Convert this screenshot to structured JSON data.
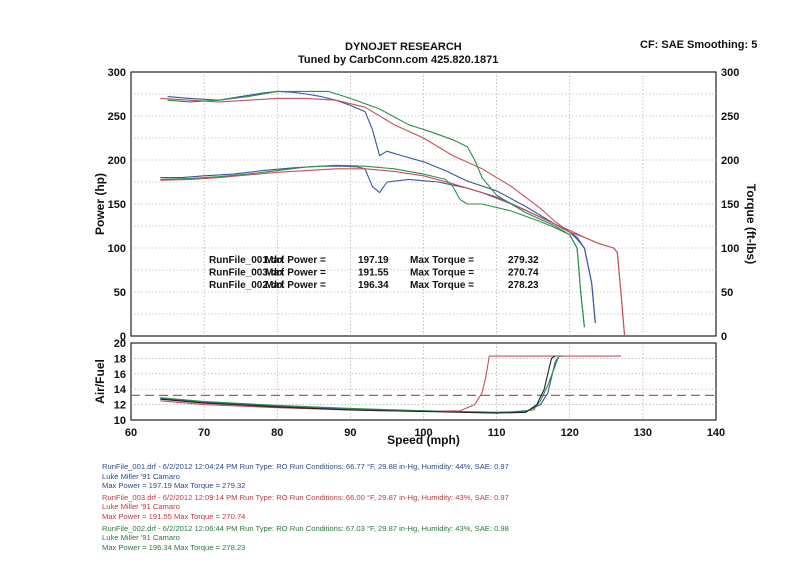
{
  "header": {
    "company": "DYNOJET RESEARCH",
    "tuned_by": "Tuned by CarbConn.com 425.820.1871",
    "settings": "CF: SAE  Smoothing: 5"
  },
  "chart_data": [
    {
      "type": "line",
      "panel": "power-torque",
      "xlabel": "Speed (mph)",
      "ylabel": "Power (hp)",
      "y2label": "Torque (ft-lbs)",
      "xlim": [
        60,
        140
      ],
      "ylim": [
        0,
        300
      ],
      "y2lim": [
        0,
        300
      ],
      "xticks": [
        60,
        70,
        80,
        90,
        100,
        110,
        120,
        130,
        140
      ],
      "yticks": [
        0,
        50,
        100,
        150,
        200,
        250,
        300
      ],
      "grid": true,
      "series": [
        {
          "name": "RunFile_001.drf",
          "measure": "Torque",
          "color": "#3a56a0",
          "x": [
            65,
            68,
            72,
            75,
            78,
            80,
            82,
            84,
            86,
            88,
            90,
            92,
            93,
            94,
            95,
            97,
            100,
            103,
            106,
            110,
            114,
            118,
            120,
            121,
            122,
            123,
            123.5
          ],
          "y": [
            272,
            270,
            268,
            272,
            276,
            278,
            277,
            275,
            272,
            268,
            262,
            255,
            235,
            205,
            210,
            205,
            198,
            188,
            176,
            165,
            147,
            127,
            118,
            110,
            100,
            60,
            15
          ]
        },
        {
          "name": "RunFile_001.drf",
          "measure": "Power",
          "color": "#3a56a0",
          "x": [
            64,
            67,
            70,
            74,
            78,
            82,
            86,
            89,
            91,
            92,
            93,
            94,
            95,
            98,
            102,
            106,
            110,
            114,
            118,
            120,
            121,
            122,
            123,
            123.5
          ],
          "y": [
            180,
            180,
            182,
            184,
            188,
            191,
            193,
            193,
            192,
            190,
            170,
            163,
            175,
            178,
            175,
            168,
            158,
            143,
            127,
            118,
            112,
            100,
            60,
            15
          ]
        },
        {
          "name": "RunFile_003.drf",
          "measure": "Torque",
          "color": "#c8505a",
          "x": [
            64,
            68,
            72,
            76,
            80,
            84,
            88,
            92,
            96,
            100,
            104,
            108,
            112,
            116,
            118,
            120,
            122,
            124,
            126,
            126.5,
            127,
            127.5
          ],
          "y": [
            270,
            268,
            266,
            268,
            270,
            270,
            268,
            260,
            240,
            225,
            205,
            190,
            170,
            145,
            130,
            118,
            112,
            105,
            100,
            95,
            50,
            0
          ]
        },
        {
          "name": "RunFile_003.drf",
          "measure": "Power",
          "color": "#c8505a",
          "x": [
            64,
            68,
            72,
            76,
            80,
            84,
            88,
            92,
            96,
            100,
            104,
            108,
            112,
            116,
            118,
            120,
            122,
            124,
            126,
            126.5,
            127,
            127.5
          ],
          "y": [
            177,
            178,
            180,
            183,
            186,
            188,
            190,
            190,
            187,
            182,
            173,
            163,
            150,
            135,
            127,
            120,
            112,
            105,
            100,
            95,
            50,
            0
          ]
        },
        {
          "name": "RunFile_002.drf",
          "measure": "Torque",
          "color": "#2c8e4a",
          "x": [
            65,
            68,
            72,
            76,
            80,
            84,
            87,
            90,
            94,
            98,
            101,
            104,
            106,
            107,
            108,
            110,
            114,
            118,
            120,
            121,
            121.5,
            122
          ],
          "y": [
            268,
            266,
            268,
            272,
            278,
            278,
            278,
            270,
            258,
            240,
            232,
            223,
            215,
            200,
            180,
            160,
            140,
            125,
            115,
            100,
            50,
            10
          ]
        },
        {
          "name": "RunFile_002.drf",
          "measure": "Power",
          "color": "#2c8e4a",
          "x": [
            64,
            68,
            72,
            76,
            80,
            84,
            88,
            92,
            96,
            100,
            103,
            104,
            105,
            106,
            108,
            112,
            116,
            118,
            120,
            121,
            121.5,
            122
          ],
          "y": [
            178,
            179,
            181,
            184,
            188,
            192,
            194,
            193,
            190,
            184,
            178,
            170,
            155,
            150,
            150,
            142,
            130,
            123,
            115,
            100,
            50,
            10
          ]
        }
      ],
      "annotations": [
        {
          "run": "RunFile_001.drf",
          "power_label": "Max Power = ",
          "max_power": "197.19",
          "torque_label": "Max Torque = ",
          "max_torque": "279.32"
        },
        {
          "run": "RunFile_003.drf",
          "power_label": "Max Power = ",
          "max_power": "191.55",
          "torque_label": "Max Torque = ",
          "max_torque": "270.74"
        },
        {
          "run": "RunFile_002.drf",
          "power_label": "Max Power = ",
          "max_power": "196.34",
          "torque_label": "Max Torque = ",
          "max_torque": "278.23"
        }
      ]
    },
    {
      "type": "line",
      "panel": "air-fuel",
      "ylabel": "Air/Fuel",
      "xlabel": "Speed (mph)",
      "xlim": [
        60,
        140
      ],
      "ylim": [
        10,
        20
      ],
      "xticks": [
        60,
        70,
        80,
        90,
        100,
        110,
        120,
        130,
        140
      ],
      "yticks": [
        10,
        12,
        14,
        16,
        18,
        20
      ],
      "grid": true,
      "reference_line": {
        "y": 13.2,
        "color": "#c8505a",
        "style": "dashed"
      },
      "series": [
        {
          "name": "RunFile_001.drf",
          "color": "#3a56a0",
          "x": [
            64,
            70,
            80,
            90,
            100,
            110,
            114,
            116,
            117,
            117.5,
            118,
            118.5,
            119
          ],
          "y": [
            12.8,
            12.3,
            11.8,
            11.4,
            11.2,
            11.0,
            11.1,
            12.0,
            13.5,
            15.5,
            17.5,
            18.3,
            18.3
          ]
        },
        {
          "name": "RunFile_003.drf",
          "color": "#c8505a",
          "x": [
            64,
            70,
            80,
            90,
            100,
            105,
            107,
            108,
            108.5,
            109,
            110,
            115,
            120,
            127
          ],
          "y": [
            12.5,
            12.0,
            11.6,
            11.3,
            11.1,
            11.2,
            12.0,
            13.5,
            15.5,
            18.3,
            18.3,
            18.3,
            18.3,
            18.3
          ]
        },
        {
          "name": "RunFile_002.drf",
          "color": "#2c8e4a",
          "x": [
            64,
            70,
            80,
            90,
            100,
            110,
            115,
            116,
            117,
            118,
            118.5,
            119
          ],
          "y": [
            12.9,
            12.4,
            11.9,
            11.5,
            11.2,
            10.9,
            11.3,
            12.5,
            14.5,
            17.0,
            18.3,
            18.3
          ]
        },
        {
          "name": "RunFile_001.drf-dark",
          "color": "#222222",
          "x": [
            64,
            70,
            80,
            90,
            100,
            110,
            114,
            115.5,
            116.5,
            117,
            117.5,
            118
          ],
          "y": [
            12.7,
            12.2,
            11.7,
            11.3,
            11.1,
            10.9,
            11.0,
            12.0,
            14.0,
            16.0,
            18.0,
            18.3
          ]
        }
      ]
    }
  ],
  "notes": [
    {
      "color": "#2b4a8a",
      "line1": "RunFile_001.drf - 6/2/2012 12:04:24 PM  Run Type: RO  Run Conditions: 66.77 °F, 29.88 in-Hg,  Humidity:  44%, SAE: 0.97",
      "line2": "Luke Miller '91 Camaro",
      "line3": "Max Power = 197.19  Max Torque = 279.32"
    },
    {
      "color": "#c03a44",
      "line1": "RunFile_003.drf - 6/2/2012 12:09:14 PM  Run Type: RO  Run Conditions: 66.00 °F, 29.87 in-Hg,  Humidity:  43%, SAE: 0.97",
      "line2": "Luke Miller '91 Camaro",
      "line3": "Max Power = 191.55  Max Torque = 270.74"
    },
    {
      "color": "#2a7a3e",
      "line1": "RunFile_002.drf - 6/2/2012 12:06:44 PM  Run Type: RO  Run Conditions: 67.03 °F, 29.87 in-Hg,  Humidity:  43%, SAE: 0.98",
      "line2": "Luke Miller '91 Camaro",
      "line3": "Max Power = 196.34  Max Torque = 278.23"
    }
  ]
}
